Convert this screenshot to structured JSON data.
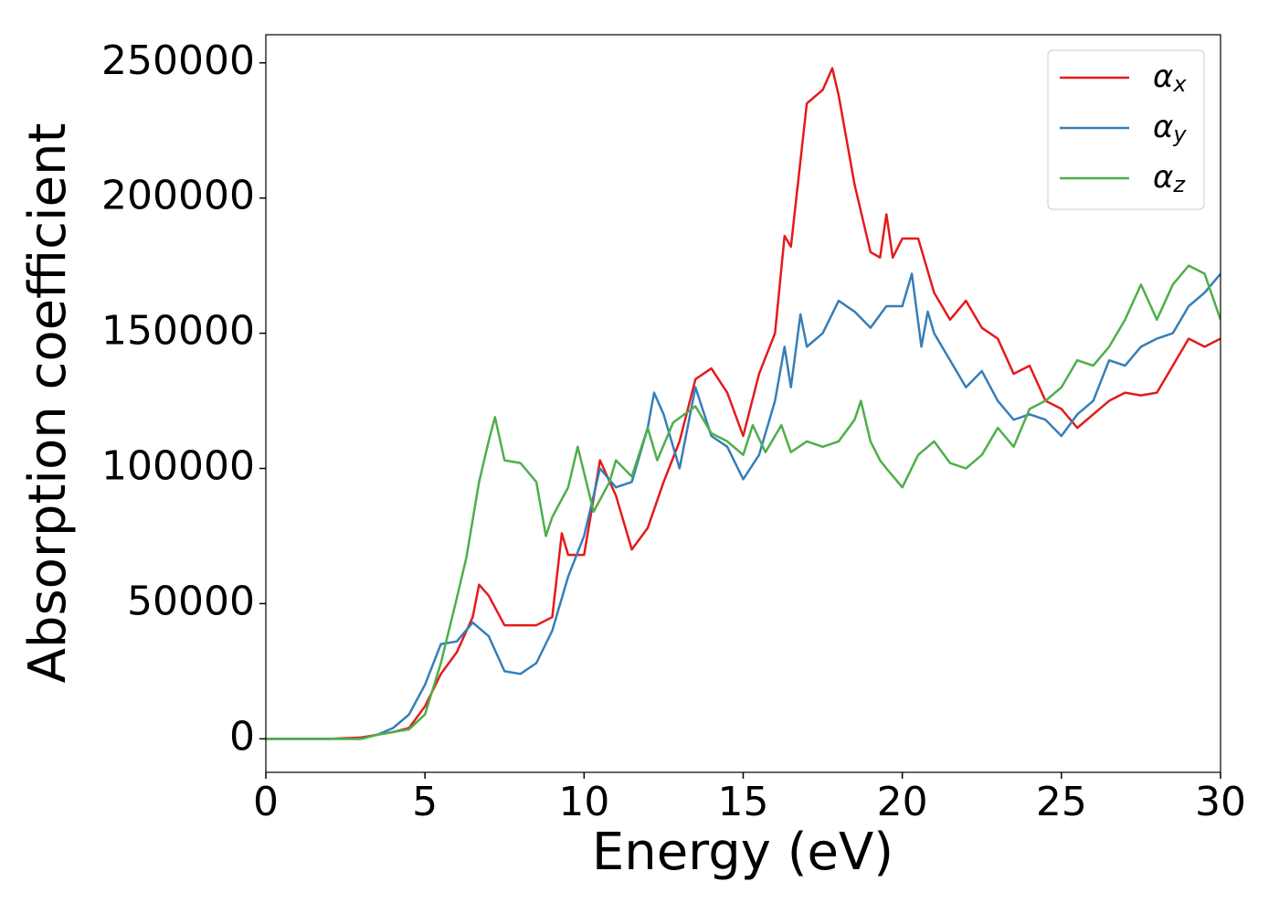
{
  "chart_data": {
    "type": "line",
    "xlabel": "Energy (eV)",
    "ylabel": "Absorption coefficient",
    "xlim": [
      0,
      30
    ],
    "xticks": [
      0,
      5,
      10,
      15,
      20,
      25,
      30
    ],
    "ylim": [
      -12400,
      260400
    ],
    "yticks": [
      0,
      50000,
      100000,
      150000,
      200000,
      250000
    ],
    "legend": "upper right",
    "series": [
      {
        "name": "αx",
        "color": "#e41a1c",
        "x": [
          0,
          1,
          2,
          3,
          3.5,
          4,
          4.5,
          5,
          5.5,
          6,
          6.5,
          6.7,
          7,
          7.5,
          8,
          8.5,
          9,
          9.3,
          9.5,
          10,
          10.5,
          11,
          11.5,
          12,
          12.5,
          13,
          13.5,
          14,
          14.5,
          15,
          15.5,
          16,
          16.3,
          16.5,
          17,
          17.5,
          17.8,
          18,
          18.5,
          19,
          19.3,
          19.5,
          19.7,
          20,
          20.5,
          21,
          21.5,
          22,
          22.5,
          23,
          23.5,
          24,
          24.5,
          25,
          25.5,
          26,
          26.5,
          27,
          27.5,
          28,
          28.5,
          29,
          29.5,
          30
        ],
        "values": [
          0,
          0,
          0,
          500,
          1500,
          2500,
          4000,
          12000,
          24000,
          32000,
          45000,
          57000,
          53000,
          42000,
          42000,
          42000,
          45000,
          76000,
          68000,
          68000,
          103000,
          90000,
          70000,
          78000,
          95000,
          110000,
          133000,
          137000,
          128000,
          112000,
          135000,
          150000,
          186000,
          182000,
          235000,
          240000,
          248000,
          238000,
          205000,
          180000,
          178000,
          194000,
          178000,
          185000,
          185000,
          165000,
          155000,
          162000,
          152000,
          148000,
          135000,
          138000,
          125000,
          122000,
          115000,
          120000,
          125000,
          128000,
          127000,
          128000,
          138000,
          148000,
          145000,
          148000
        ]
      },
      {
        "name": "αy",
        "color": "#377eb8",
        "x": [
          0,
          1,
          2,
          3,
          3.5,
          4,
          4.5,
          5,
          5.5,
          6,
          6.5,
          7,
          7.5,
          8,
          8.5,
          9,
          9.5,
          10,
          10.5,
          11,
          11.5,
          12,
          12.2,
          12.5,
          13,
          13.5,
          14,
          14.5,
          15,
          15.5,
          16,
          16.3,
          16.5,
          16.8,
          17,
          17.5,
          18,
          18.5,
          19,
          19.5,
          20,
          20.3,
          20.6,
          20.8,
          21,
          21.5,
          22,
          22.5,
          23,
          23.5,
          24,
          24.5,
          25,
          25.5,
          26,
          26.5,
          27,
          27.5,
          28,
          28.5,
          29,
          29.5,
          30
        ],
        "values": [
          0,
          0,
          0,
          0,
          1500,
          4000,
          9000,
          20000,
          35000,
          36000,
          43000,
          38000,
          25000,
          24000,
          28000,
          40000,
          60000,
          75000,
          100000,
          93000,
          95000,
          115000,
          128000,
          120000,
          100000,
          130000,
          112000,
          108000,
          96000,
          105000,
          125000,
          145000,
          130000,
          157000,
          145000,
          150000,
          162000,
          158000,
          152000,
          160000,
          160000,
          172000,
          145000,
          158000,
          150000,
          140000,
          130000,
          136000,
          125000,
          118000,
          120000,
          118000,
          112000,
          120000,
          125000,
          140000,
          138000,
          145000,
          148000,
          150000,
          160000,
          165000,
          172000
        ]
      },
      {
        "name": "αz",
        "color": "#4daf4a",
        "x": [
          0,
          1,
          2,
          3,
          3.5,
          4,
          4.5,
          5,
          5.5,
          6,
          6.3,
          6.7,
          7,
          7.2,
          7.5,
          8,
          8.5,
          8.8,
          9,
          9.5,
          9.8,
          10.3,
          10.8,
          11,
          11.5,
          12,
          12.3,
          12.8,
          13.5,
          14,
          14.5,
          15,
          15.3,
          15.7,
          16.2,
          16.5,
          17,
          17.5,
          18,
          18.5,
          18.7,
          19,
          19.3,
          19.5,
          20,
          20.5,
          21,
          21.5,
          22,
          22.5,
          23,
          23.5,
          24,
          24.5,
          25,
          25.5,
          26,
          26.5,
          27,
          27.5,
          28,
          28.5,
          29,
          29.5,
          30
        ],
        "values": [
          0,
          0,
          0,
          0,
          1500,
          2500,
          3500,
          9000,
          28000,
          52000,
          67000,
          95000,
          110000,
          119000,
          103000,
          102000,
          95000,
          75000,
          82000,
          93000,
          108000,
          84000,
          95000,
          103000,
          97000,
          115000,
          103000,
          117000,
          123000,
          113000,
          110000,
          105000,
          116000,
          106000,
          116000,
          106000,
          110000,
          108000,
          110000,
          118000,
          125000,
          110000,
          103000,
          100000,
          93000,
          105000,
          110000,
          102000,
          100000,
          105000,
          115000,
          108000,
          122000,
          125000,
          130000,
          140000,
          138000,
          145000,
          155000,
          168000,
          155000,
          168000,
          175000,
          172000,
          155000
        ]
      }
    ]
  }
}
